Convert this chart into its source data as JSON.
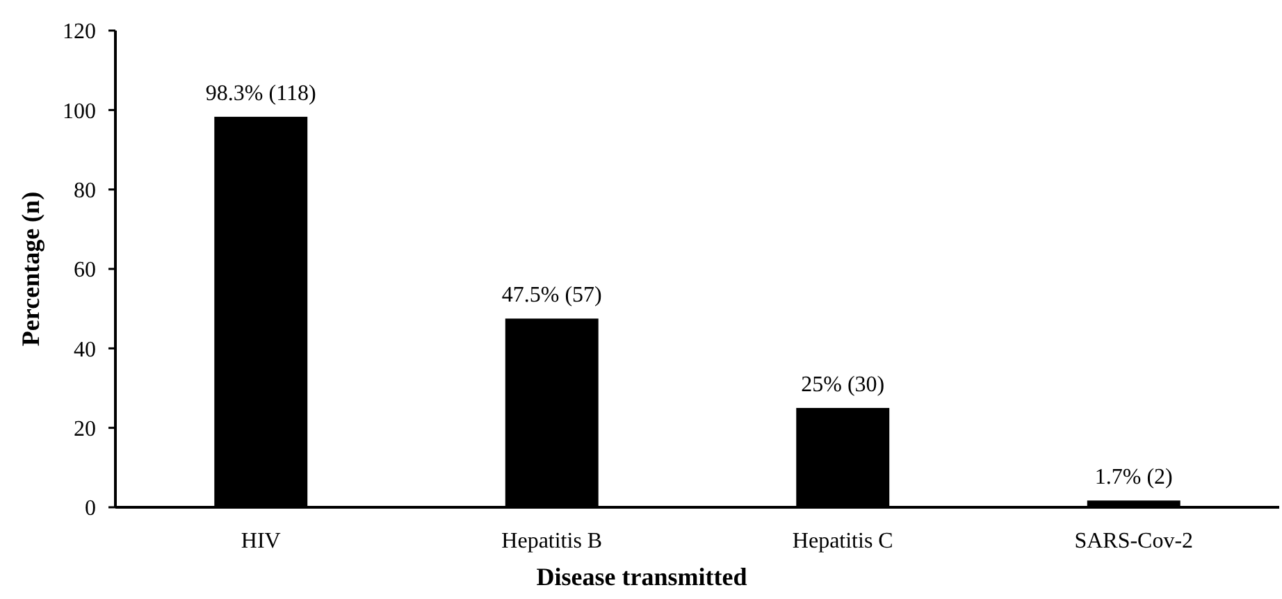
{
  "chart_data": {
    "type": "bar",
    "xlabel": "Disease transmitted",
    "ylabel": "Percentage (n)",
    "categories": [
      "HIV",
      "Hepatitis B",
      "Hepatitis C",
      "SARS-Cov-2"
    ],
    "values": [
      98.3,
      47.5,
      25,
      1.7
    ],
    "color": "#000000",
    "value_labels": [
      "98.3% (118)",
      "47.5% (57)",
      "25% (30)",
      "1.7% (2)"
    ],
    "ylim": [
      0,
      120
    ],
    "yticks": [
      0,
      20,
      40,
      60,
      80,
      100,
      120
    ],
    "grid": false
  }
}
